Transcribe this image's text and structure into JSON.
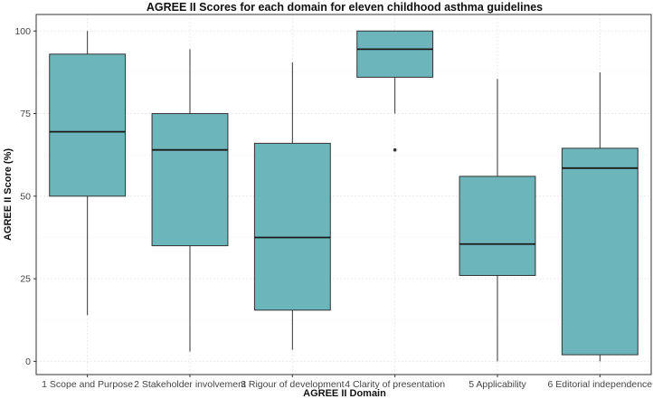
{
  "chart_data": {
    "type": "box",
    "title": "AGREE II Scores for each domain for eleven childhood asthma guidelines",
    "xlabel": "AGREE II Domain",
    "ylabel": "AGREE II Score (%)",
    "ylim": [
      -4,
      105
    ],
    "yticks": [
      0,
      25,
      50,
      75,
      100
    ],
    "grid": true,
    "box_color": "#6cb6bb",
    "categories": [
      "1 Scope and Purpose",
      "2 Stakeholder involvement",
      "3 Rigour of development",
      "4 Clarity of presentation",
      "5 Applicability",
      "6 Editorial independence"
    ],
    "boxes": [
      {
        "min": 14,
        "q1": 50,
        "median": 69.5,
        "q3": 93,
        "max": 100,
        "outliers": []
      },
      {
        "min": 3,
        "q1": 35,
        "median": 64,
        "q3": 75,
        "max": 94.5,
        "outliers": []
      },
      {
        "min": 3.5,
        "q1": 15.5,
        "median": 37.5,
        "q3": 66,
        "max": 90.5,
        "outliers": []
      },
      {
        "min": 75,
        "q1": 86,
        "median": 94.5,
        "q3": 100,
        "max": 100,
        "outliers": [
          64
        ]
      },
      {
        "min": 0,
        "q1": 26,
        "median": 35.5,
        "q3": 56,
        "max": 85.5,
        "outliers": []
      },
      {
        "min": 0,
        "q1": 2,
        "median": 58.5,
        "q3": 64.5,
        "max": 87.5,
        "outliers": []
      }
    ]
  }
}
